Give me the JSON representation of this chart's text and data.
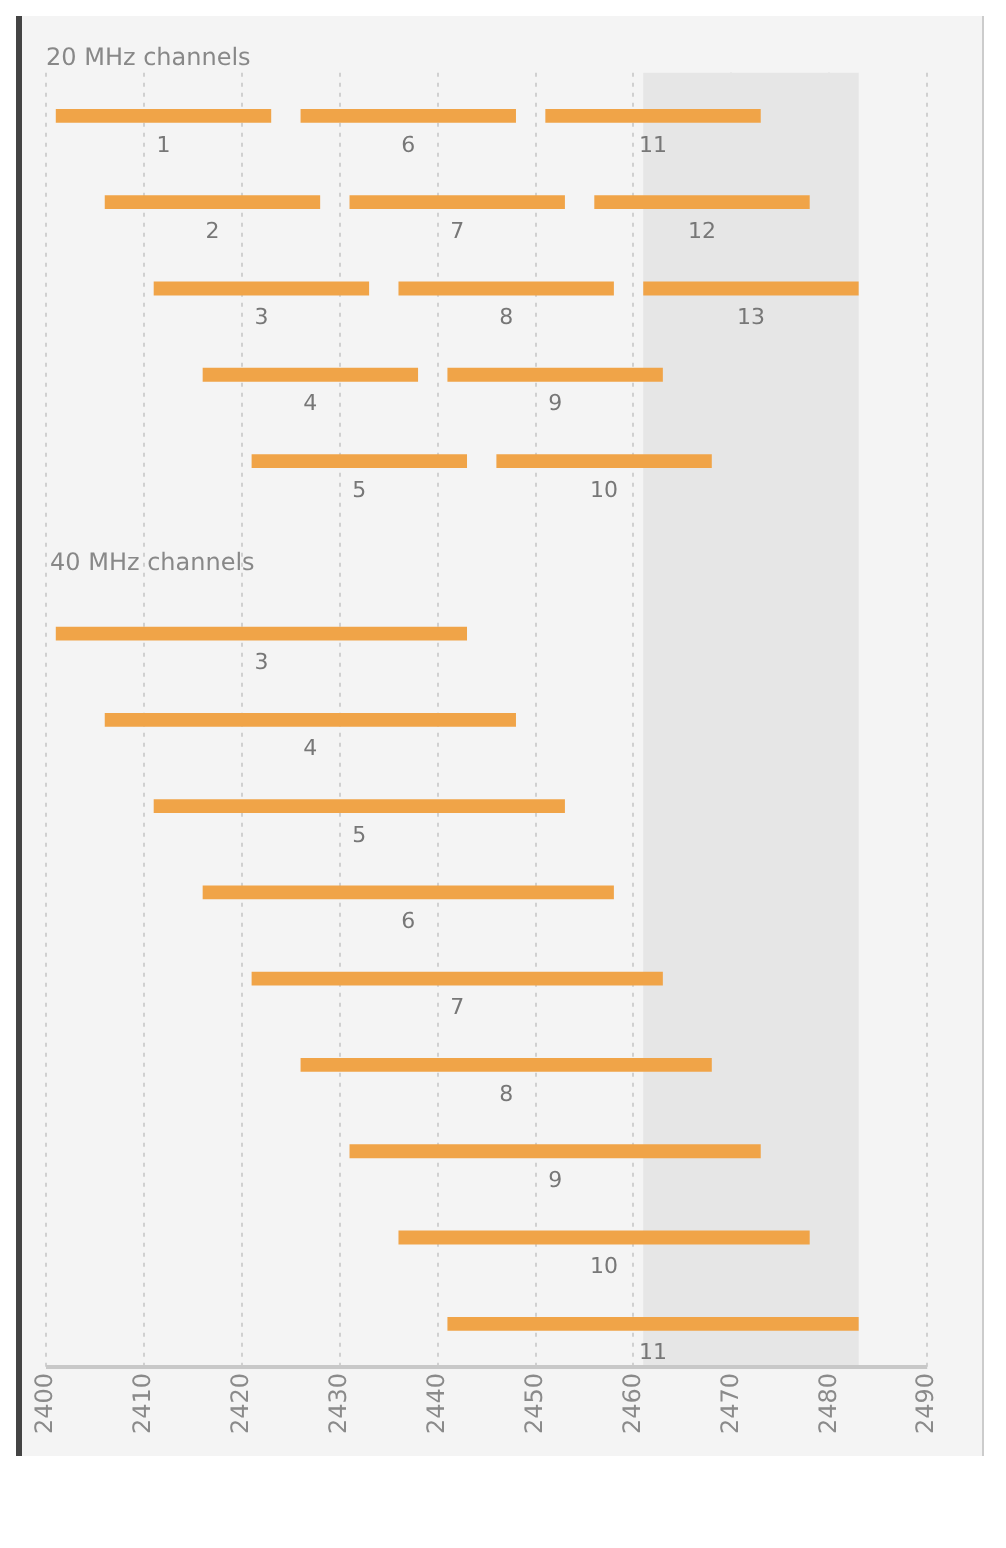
{
  "chart_data": {
    "type": "bar",
    "title": "20 MHz channels",
    "orientation": "horizontal",
    "categories": [
      null,
      null,
      null,
      null,
      null,
      null,
      null,
      null,
      null,
      null,
      null,
      null,
      null,
      null,
      null
    ],
    "xlim": [
      2400,
      2490
    ],
    "xticks": [
      2400,
      2410,
      2420,
      2430,
      2440,
      2450,
      2460,
      2470,
      2480,
      2490
    ],
    "grid": "x",
    "legend": false,
    "bands": [
      {
        "axis": "x",
        "from": 2461,
        "to": 2483,
        "color": "#e6e6e6"
      }
    ],
    "series": [
      {
        "color": "#f0a448",
        "base": [
          2401,
          2406,
          2411,
          2416,
          2421,
          null,
          null,
          null,
          null,
          null,
          null,
          null,
          null,
          null,
          null
        ],
        "values": [
          22,
          22,
          22,
          22,
          22,
          null,
          null,
          null,
          null,
          null,
          null,
          null,
          null,
          null,
          null
        ]
      },
      {
        "color": "#f0a448",
        "base": [
          2426,
          2431,
          2436,
          2441,
          2446,
          null,
          null,
          null,
          null,
          null,
          null,
          null,
          null,
          null,
          null
        ],
        "values": [
          22,
          22,
          22,
          22,
          22,
          null,
          null,
          null,
          null,
          null,
          null,
          null,
          null,
          null,
          null
        ]
      },
      {
        "color": "#f0a448",
        "base": [
          2451,
          2456,
          2461,
          null,
          null,
          null,
          null,
          null,
          null,
          null,
          null,
          null,
          null,
          null,
          null
        ],
        "values": [
          22,
          22,
          22,
          null,
          null,
          null,
          null,
          null,
          null,
          null,
          null,
          null,
          null,
          null,
          null
        ]
      },
      {
        "color": "#f0a448",
        "base": [
          null,
          null,
          null,
          null,
          null,
          null,
          2401,
          2406,
          2411,
          2416,
          2421,
          2426,
          2431,
          2436,
          2441
        ],
        "values": [
          null,
          null,
          null,
          null,
          null,
          null,
          42,
          42,
          42,
          42,
          42,
          42,
          42,
          42,
          42
        ]
      }
    ],
    "annotations": [
      "1",
      "6",
      "11",
      "2",
      "7",
      "12",
      "3",
      "8",
      "13",
      "4",
      "9",
      "5",
      "10",
      "40 MHz channels",
      "3",
      "4",
      "5",
      "6",
      "7",
      "8",
      "9",
      "10",
      "11"
    ]
  }
}
